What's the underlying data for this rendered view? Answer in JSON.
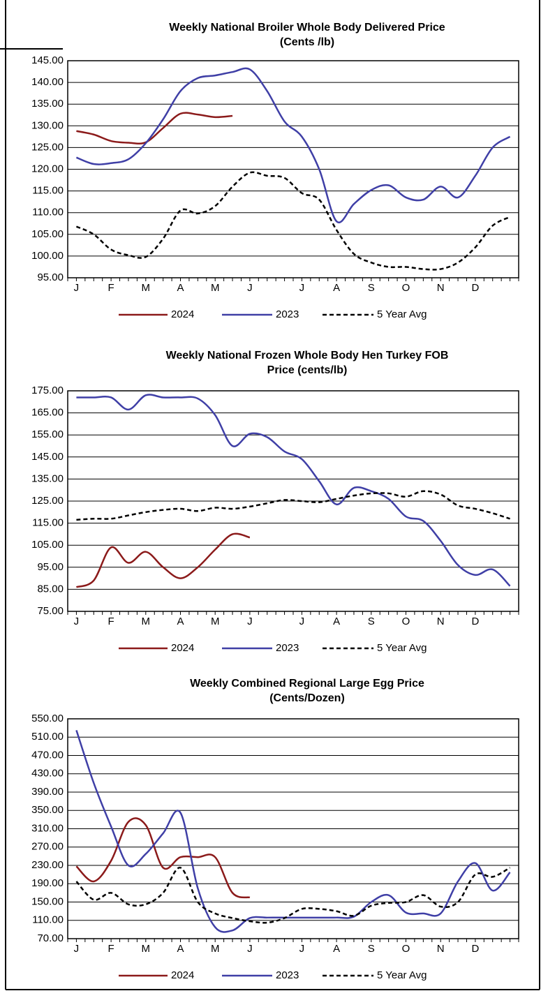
{
  "chart_data": [
    {
      "type": "line",
      "title": [
        "Weekly National Broiler Whole Body Delivered Price",
        "(Cents /lb)"
      ],
      "categories": [
        "J",
        null,
        "F",
        null,
        "M",
        null,
        "A",
        null,
        "M",
        null,
        "J",
        null,
        null,
        "J",
        null,
        "A",
        null,
        "S",
        null,
        "O",
        null,
        "N",
        null,
        "D",
        null,
        null
      ],
      "ylim": [
        95,
        145
      ],
      "yticks": [
        {
          "value": 95,
          "label": "95.00"
        },
        {
          "value": 100,
          "label": "100.00"
        },
        {
          "value": 105,
          "label": "105.00"
        },
        {
          "value": 110,
          "label": "110.00"
        },
        {
          "value": 115,
          "label": "115.00"
        },
        {
          "value": 120,
          "label": "120.00"
        },
        {
          "value": 125,
          "label": "125.00"
        },
        {
          "value": 130,
          "label": "130.00"
        },
        {
          "value": 135,
          "label": "135.00"
        },
        {
          "value": 140,
          "label": "140.00"
        },
        {
          "value": 145,
          "label": "145.00"
        }
      ],
      "grid": true,
      "legend": "bottom",
      "series": [
        {
          "name": "2024",
          "color": "#8b1a1a",
          "style": "solid",
          "values": [
            128.8,
            128,
            126.5,
            126.1,
            126.2,
            129.5,
            132.8,
            132.6,
            132,
            132.3,
            null,
            null,
            null,
            null,
            null,
            null,
            null,
            null,
            null,
            null,
            null,
            null,
            null,
            null,
            null,
            null
          ]
        },
        {
          "name": "2023",
          "color": "#3f3fa6",
          "style": "solid",
          "values": [
            122.7,
            121.2,
            121.4,
            122.3,
            126,
            131.5,
            138,
            141,
            141.6,
            142.4,
            143,
            138,
            131,
            127.5,
            120,
            108,
            112,
            115.2,
            116.3,
            113.5,
            113,
            116,
            113.5,
            118.5,
            125,
            127.5
          ]
        },
        {
          "name": "5 Year Avg",
          "color": "#000000",
          "style": "dashed",
          "values": [
            106.8,
            105,
            101.5,
            100.2,
            99.8,
            104,
            110.5,
            109.8,
            111.5,
            116,
            119.2,
            118.5,
            118,
            114.5,
            113,
            106,
            100.5,
            98.5,
            97.5,
            97.5,
            97,
            97,
            98.5,
            102,
            107,
            109
          ]
        }
      ]
    },
    {
      "type": "line",
      "title": [
        "Weekly National Frozen Whole Body Hen Turkey FOB",
        "Price (cents/lb)"
      ],
      "categories": [
        "J",
        null,
        "F",
        null,
        "M",
        null,
        "A",
        null,
        "M",
        null,
        "J",
        null,
        null,
        "J",
        null,
        "A",
        null,
        "S",
        null,
        "O",
        null,
        "N",
        null,
        "D",
        null,
        null
      ],
      "ylim": [
        75,
        175
      ],
      "yticks": [
        {
          "value": 75,
          "label": "75.00"
        },
        {
          "value": 85,
          "label": "85.00"
        },
        {
          "value": 95,
          "label": "95.00"
        },
        {
          "value": 105,
          "label": "105.00"
        },
        {
          "value": 115,
          "label": "115.00"
        },
        {
          "value": 125,
          "label": "125.00"
        },
        {
          "value": 135,
          "label": "135.00"
        },
        {
          "value": 145,
          "label": "145.00"
        },
        {
          "value": 155,
          "label": "155.00"
        },
        {
          "value": 165,
          "label": "165.00"
        },
        {
          "value": 175,
          "label": "175.00"
        }
      ],
      "grid": true,
      "legend": "bottom",
      "series": [
        {
          "name": "2024",
          "color": "#8b1a1a",
          "style": "solid",
          "values": [
            86,
            89,
            104,
            97,
            102,
            95,
            90,
            95,
            103,
            110,
            108.5,
            null,
            null,
            null,
            null,
            null,
            null,
            null,
            null,
            null,
            null,
            null,
            null,
            null,
            null,
            null
          ]
        },
        {
          "name": "2023",
          "color": "#3f3fa6",
          "style": "solid",
          "values": [
            172,
            172,
            172,
            166.5,
            173,
            172,
            172,
            171.5,
            164,
            150,
            155.5,
            154,
            147.5,
            144,
            134,
            123.5,
            131,
            129.5,
            126,
            118,
            116,
            107,
            96,
            91.5,
            94,
            86.5
          ]
        },
        {
          "name": "5 Year Avg",
          "color": "#000000",
          "style": "dashed",
          "values": [
            116.5,
            117,
            117,
            118.5,
            120,
            121,
            121.5,
            120.5,
            122,
            121.5,
            122.5,
            124,
            125.5,
            125,
            124.5,
            126,
            127.5,
            128.5,
            128.5,
            127,
            129.5,
            128,
            123,
            121.5,
            119.5,
            117
          ]
        }
      ]
    },
    {
      "type": "line",
      "title": [
        "Weekly Combined Regional Large Egg Price",
        "(Cents/Dozen)"
      ],
      "categories": [
        "J",
        null,
        "F",
        null,
        "M",
        null,
        "A",
        null,
        "M",
        null,
        "J",
        null,
        null,
        "J",
        null,
        "A",
        null,
        "S",
        null,
        "O",
        null,
        "N",
        null,
        "D",
        null,
        null
      ],
      "ylim": [
        70,
        550
      ],
      "yticks": [
        {
          "value": 70,
          "label": "70.00"
        },
        {
          "value": 110,
          "label": "110.00"
        },
        {
          "value": 150,
          "label": "150.00"
        },
        {
          "value": 190,
          "label": "190.00"
        },
        {
          "value": 230,
          "label": "230.00"
        },
        {
          "value": 270,
          "label": "270.00"
        },
        {
          "value": 310,
          "label": "310.00"
        },
        {
          "value": 350,
          "label": "350.00"
        },
        {
          "value": 390,
          "label": "390.00"
        },
        {
          "value": 430,
          "label": "430.00"
        },
        {
          "value": 470,
          "label": "470.00"
        },
        {
          "value": 510,
          "label": "510.00"
        },
        {
          "value": 550,
          "label": "550.00"
        }
      ],
      "grid": true,
      "legend": "bottom",
      "series": [
        {
          "name": "2024",
          "color": "#8b1a1a",
          "style": "solid",
          "values": [
            228,
            195,
            240,
            325,
            318,
            225,
            248,
            248,
            248,
            170,
            160,
            null,
            null,
            null,
            null,
            null,
            null,
            null,
            null,
            null,
            null,
            null,
            null,
            null,
            null,
            null
          ]
        },
        {
          "name": "2023",
          "color": "#3f3fa6",
          "style": "solid",
          "values": [
            525,
            410,
            315,
            230,
            255,
            300,
            345,
            180,
            95,
            88,
            115,
            116,
            116,
            116,
            116,
            116,
            118,
            150,
            165,
            127,
            125,
            125,
            195,
            235,
            175,
            215
          ]
        },
        {
          "name": "5 Year Avg",
          "color": "#000000",
          "style": "dashed",
          "values": [
            195,
            155,
            170,
            145,
            145,
            170,
            225,
            150,
            125,
            115,
            108,
            105,
            115,
            135,
            135,
            130,
            120,
            142,
            148,
            150,
            165,
            140,
            150,
            210,
            205,
            225
          ]
        }
      ]
    }
  ]
}
